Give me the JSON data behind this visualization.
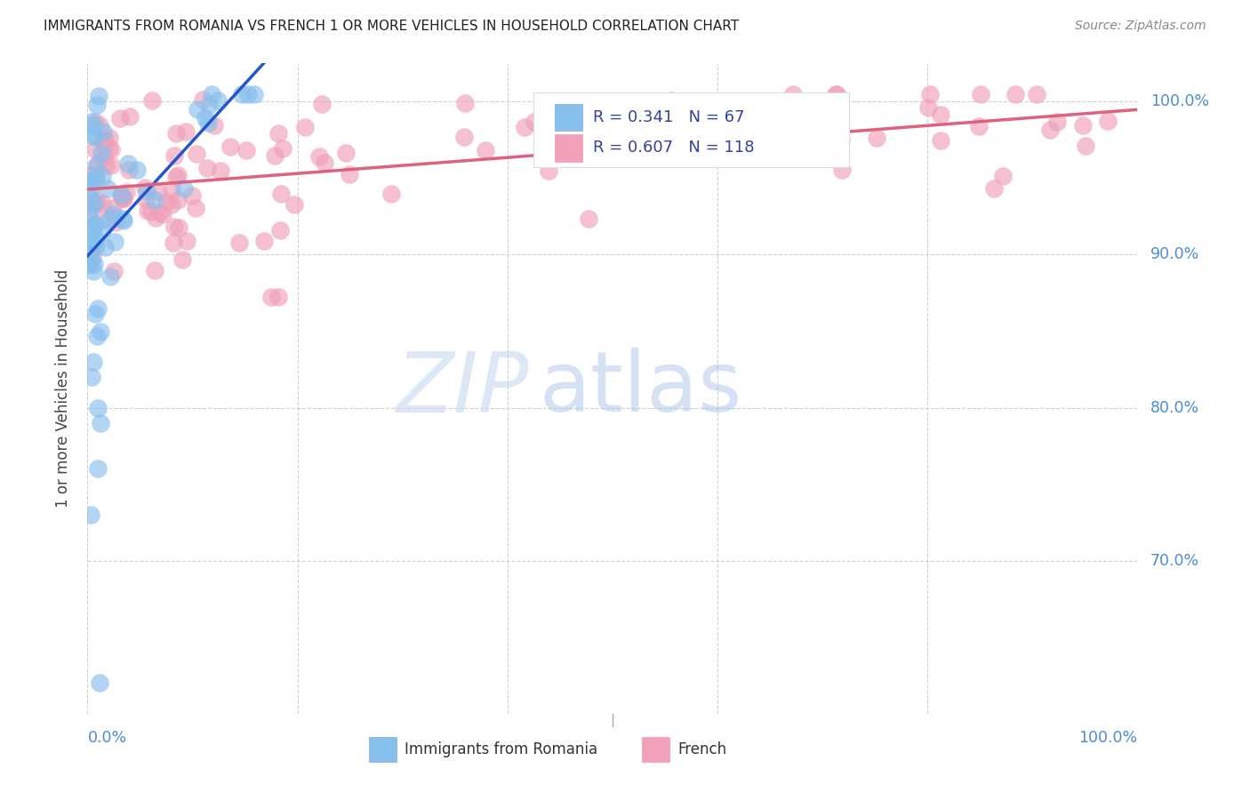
{
  "title": "IMMIGRANTS FROM ROMANIA VS FRENCH 1 OR MORE VEHICLES IN HOUSEHOLD CORRELATION CHART",
  "source": "Source: ZipAtlas.com",
  "ylabel": "1 or more Vehicles in Household",
  "ytick_labels": [
    "100.0%",
    "90.0%",
    "80.0%",
    "70.0%"
  ],
  "ytick_values": [
    1.0,
    0.9,
    0.8,
    0.7
  ],
  "legend_r_romania": "0.341",
  "legend_n_romania": "67",
  "legend_r_french": "0.607",
  "legend_n_french": "118",
  "color_romania": "#87BFED",
  "color_french": "#F0A0B8",
  "color_trendline_romania": "#2255CC",
  "color_trendline_french": "#E06080",
  "color_axis_label": "#4B8DD4",
  "background": "#FFFFFF",
  "ylim_min": 0.6,
  "ylim_max": 1.025,
  "xlim_min": 0.0,
  "xlim_max": 1.0,
  "watermark_zip": "ZIP",
  "watermark_atlas": "atlas",
  "seed": 42
}
